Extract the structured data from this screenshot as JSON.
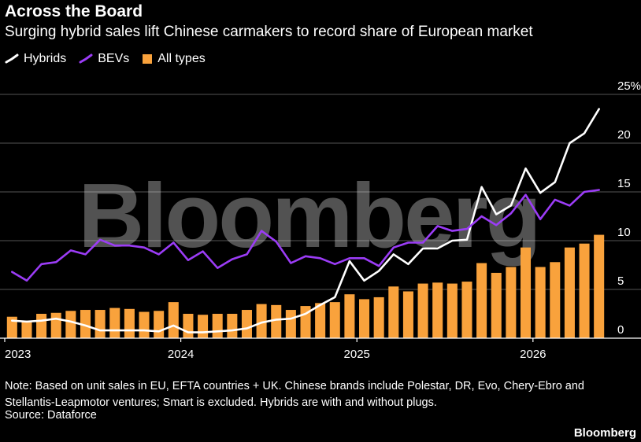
{
  "title": "Across the Board",
  "subtitle": "Surging hybrid sales lift Chinese carmakers to record share of European market",
  "legend": [
    {
      "label": "Hybrids",
      "color": "#ffffff",
      "icon": "line-check-icon"
    },
    {
      "label": "BEVs",
      "color": "#9b3cf6",
      "icon": "line-check-icon"
    },
    {
      "label": "All types",
      "color": "#f9a23c",
      "icon": "square-icon"
    }
  ],
  "watermark": "Bloomberg",
  "note": "Note: Based on unit sales in EU, EFTA countries + UK. Chinese brands include Polestar, DR, Evo, Chery-Ebro and Stellantis-Leapmotor ventures; Smart is excluded. Hybrids are with and without plugs.",
  "source": "Source: Dataforce",
  "brand": "Bloomberg",
  "chart_data": {
    "type": "bar",
    "x": [
      "2023-01",
      "2023-02",
      "2023-03",
      "2023-04",
      "2023-05",
      "2023-06",
      "2023-07",
      "2023-08",
      "2023-09",
      "2023-10",
      "2023-11",
      "2023-12",
      "2024-01",
      "2024-02",
      "2024-03",
      "2024-04",
      "2024-05",
      "2024-06",
      "2024-07",
      "2024-08",
      "2024-09",
      "2024-10",
      "2024-11",
      "2024-12",
      "2025-01",
      "2025-02",
      "2025-03",
      "2025-04",
      "2025-05",
      "2025-06",
      "2025-07",
      "2025-08",
      "2025-09",
      "2025-10",
      "2025-11",
      "2025-12",
      "2026-01",
      "2026-02",
      "2026-03",
      "2026-04",
      "2026-05"
    ],
    "xticks": [
      {
        "label": "2023",
        "x": "2023-01"
      },
      {
        "label": "2024",
        "x": "2024-01"
      },
      {
        "label": "2025",
        "x": "2025-01"
      },
      {
        "label": "2026",
        "x": "2026-01"
      }
    ],
    "ylim": [
      0,
      25
    ],
    "yticks": [
      "0",
      "5",
      "10",
      "15",
      "20",
      "25%"
    ],
    "grid": true,
    "legend_position": "top-left",
    "series": [
      {
        "name": "All types",
        "type": "bar",
        "color": "#f9a23c",
        "values": [
          2.2,
          1.8,
          2.5,
          2.6,
          2.8,
          2.9,
          2.9,
          3.1,
          3.0,
          2.7,
          2.8,
          3.7,
          2.5,
          2.4,
          2.5,
          2.5,
          2.9,
          3.5,
          3.4,
          2.9,
          3.3,
          3.6,
          3.7,
          4.5,
          4.0,
          4.2,
          5.3,
          4.8,
          5.6,
          5.7,
          5.6,
          5.8,
          7.7,
          6.7,
          7.3,
          9.3,
          7.3,
          7.8,
          9.3,
          9.7,
          10.6
        ]
      },
      {
        "name": "BEVs",
        "type": "line",
        "color": "#9b3cf6",
        "values": [
          6.8,
          5.9,
          7.6,
          7.8,
          9.0,
          8.6,
          10.1,
          9.5,
          9.5,
          9.3,
          8.6,
          9.8,
          8.0,
          8.9,
          7.2,
          8.1,
          8.6,
          11.0,
          9.9,
          7.7,
          8.4,
          8.2,
          7.6,
          8.2,
          8.2,
          7.4,
          9.3,
          9.8,
          9.8,
          11.5,
          11.0,
          11.2,
          12.5,
          11.6,
          12.8,
          14.7,
          12.2,
          14.2,
          13.6,
          15.0,
          15.2
        ]
      },
      {
        "name": "Hybrids",
        "type": "line",
        "color": "#ffffff",
        "values": [
          1.8,
          1.7,
          1.8,
          2.0,
          1.7,
          1.3,
          0.8,
          0.8,
          0.8,
          0.8,
          0.7,
          1.3,
          0.6,
          0.6,
          0.7,
          0.8,
          1.0,
          1.6,
          1.9,
          2.0,
          2.5,
          3.4,
          4.2,
          7.9,
          5.9,
          6.9,
          8.6,
          7.6,
          9.2,
          9.2,
          10.0,
          10.1,
          15.5,
          12.7,
          13.6,
          17.4,
          14.9,
          16.0,
          20.0,
          21.0,
          23.5
        ]
      }
    ]
  }
}
